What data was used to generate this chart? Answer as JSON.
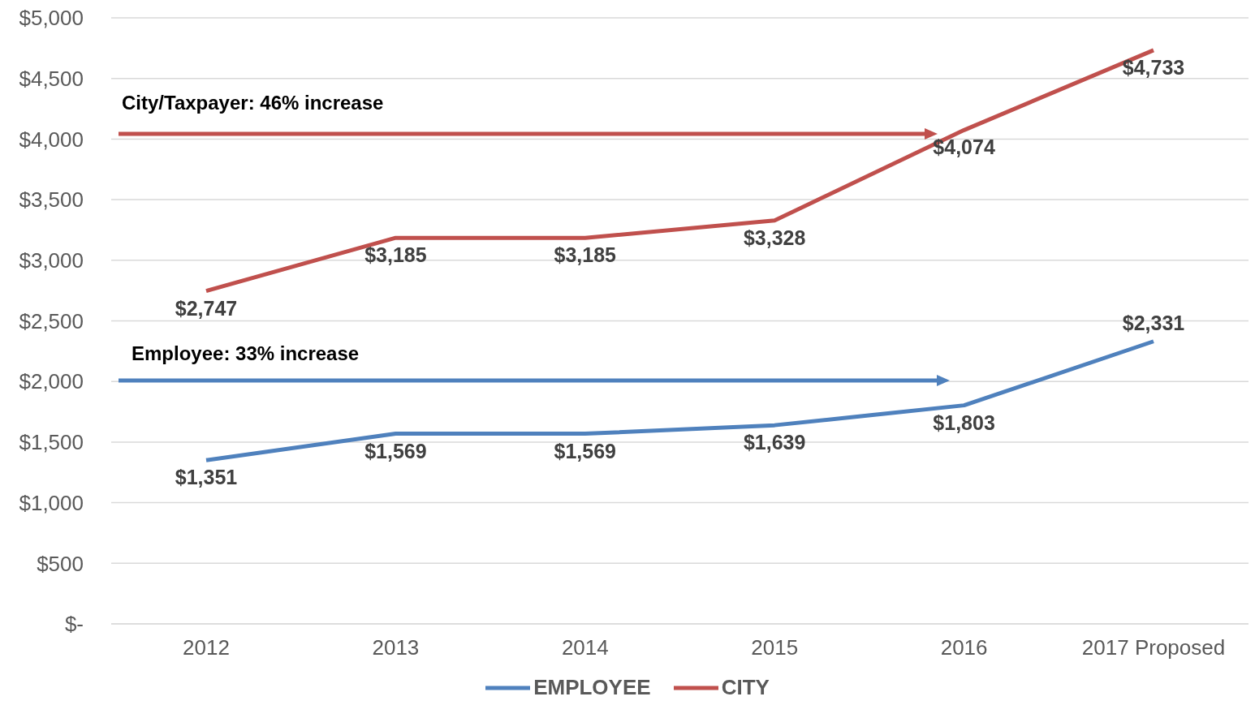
{
  "chart_data": {
    "type": "line",
    "categories": [
      "2012",
      "2013",
      "2014",
      "2015",
      "2016",
      "2017 Proposed"
    ],
    "series": [
      {
        "name": "EMPLOYEE",
        "color": "#4f81bd",
        "values": [
          1351,
          1569,
          1569,
          1639,
          1803,
          2331
        ]
      },
      {
        "name": "CITY",
        "color": "#c0504d",
        "values": [
          2747,
          3185,
          3185,
          3328,
          4074,
          4733
        ]
      }
    ],
    "ylim": [
      0,
      5000
    ],
    "yticks": [
      {
        "value": 0,
        "label": "$-"
      },
      {
        "value": 500,
        "label": "$500"
      },
      {
        "value": 1000,
        "label": "$1,000"
      },
      {
        "value": 1500,
        "label": "$1,500"
      },
      {
        "value": 2000,
        "label": "$2,000"
      },
      {
        "value": 2500,
        "label": "$2,500"
      },
      {
        "value": 3000,
        "label": "$3,000"
      },
      {
        "value": 3500,
        "label": "$3,500"
      },
      {
        "value": 4000,
        "label": "$4,000"
      },
      {
        "value": 4500,
        "label": "$4,500"
      },
      {
        "value": 5000,
        "label": "$5,000"
      }
    ],
    "value_labels": [
      [
        "$1,351",
        "$1,569",
        "$1,569",
        "$1,639",
        "$1,803",
        "$2,331"
      ],
      [
        "$2,747",
        "$3,185",
        "$3,185",
        "$3,328",
        "$4,074",
        "$4,733"
      ]
    ],
    "annotations": [
      "City/Taxpayer: 46% increase",
      "Employee: 33% increase"
    ],
    "grid": "y",
    "legend": "bottom",
    "marker": "none",
    "line_style": "solid"
  }
}
